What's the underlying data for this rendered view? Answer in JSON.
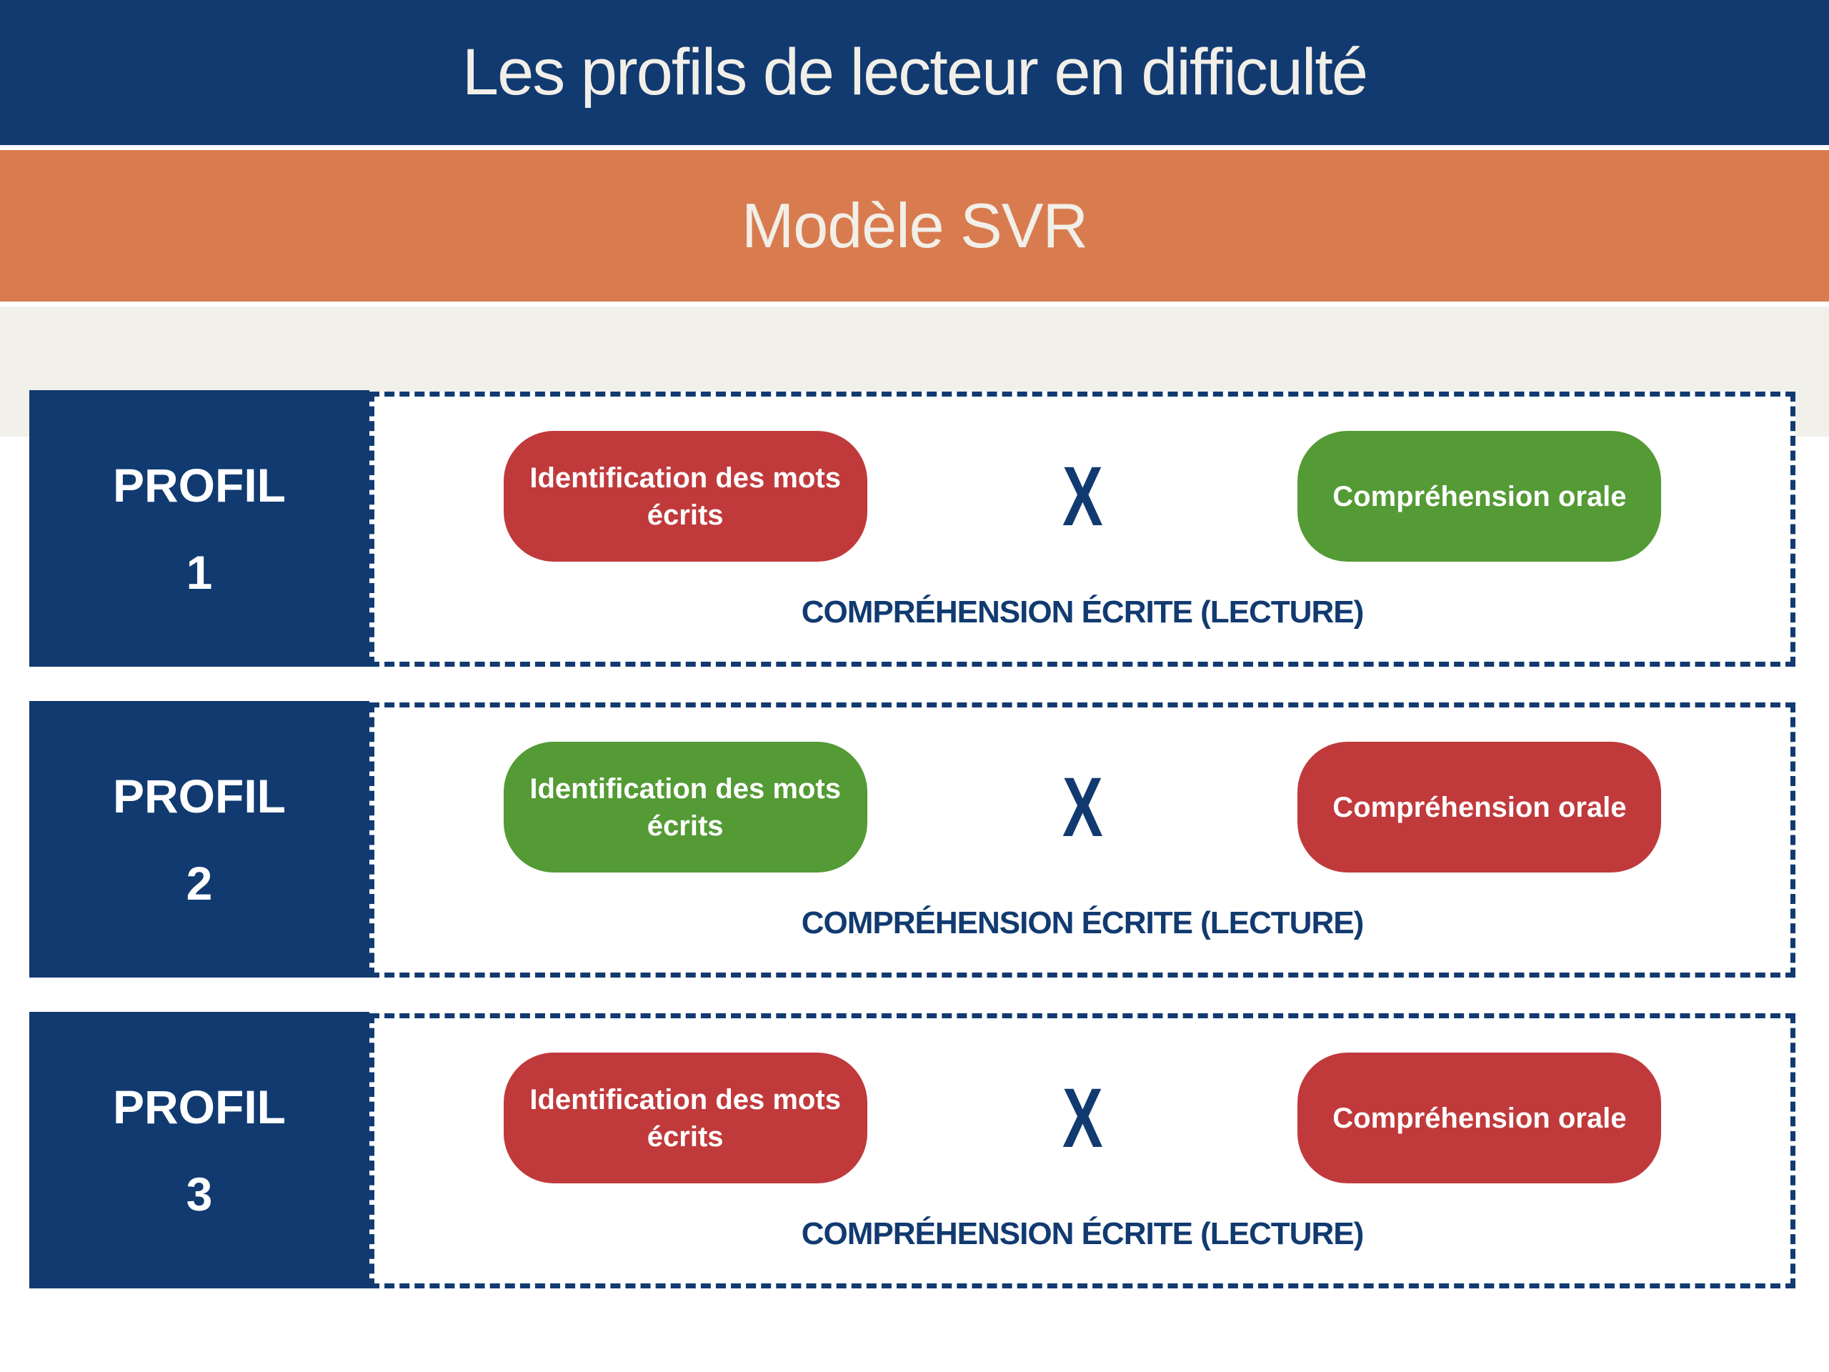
{
  "title_bar": {
    "text": "Les profils de lecteur en difficulté",
    "bg": "#113a70",
    "fg": "#f2efe8"
  },
  "subtitle_bar": {
    "text": "Modèle SVR",
    "bg": "#d87c50",
    "fg": "#f2efe8"
  },
  "colors": {
    "dark_blue": "#113a70",
    "orange": "#d87c50",
    "red": "#c03a3c",
    "green": "#549a35",
    "beige": "#f2f0ea",
    "pill_text": "#ffffff"
  },
  "profiles": [
    {
      "label": "PROFIL",
      "number": "1",
      "left_pill": {
        "text": "Identification des mots écrits",
        "color": "#c03a3c"
      },
      "operator": "X",
      "right_pill": {
        "text": "Compréhension orale",
        "color": "#549a35"
      },
      "caption": "COMPRÉHENSION ÉCRITE (LECTURE)"
    },
    {
      "label": "PROFIL",
      "number": "2",
      "left_pill": {
        "text": "Identification des mots écrits",
        "color": "#549a35"
      },
      "operator": "X",
      "right_pill": {
        "text": "Compréhension orale",
        "color": "#c03a3c"
      },
      "caption": "COMPRÉHENSION ÉCRITE (LECTURE)"
    },
    {
      "label": "PROFIL",
      "number": "3",
      "left_pill": {
        "text": "Identification des mots écrits",
        "color": "#c03a3c"
      },
      "operator": "X",
      "right_pill": {
        "text": "Compréhension orale",
        "color": "#c03a3c"
      },
      "caption": "COMPRÉHENSION ÉCRITE (LECTURE)"
    }
  ]
}
